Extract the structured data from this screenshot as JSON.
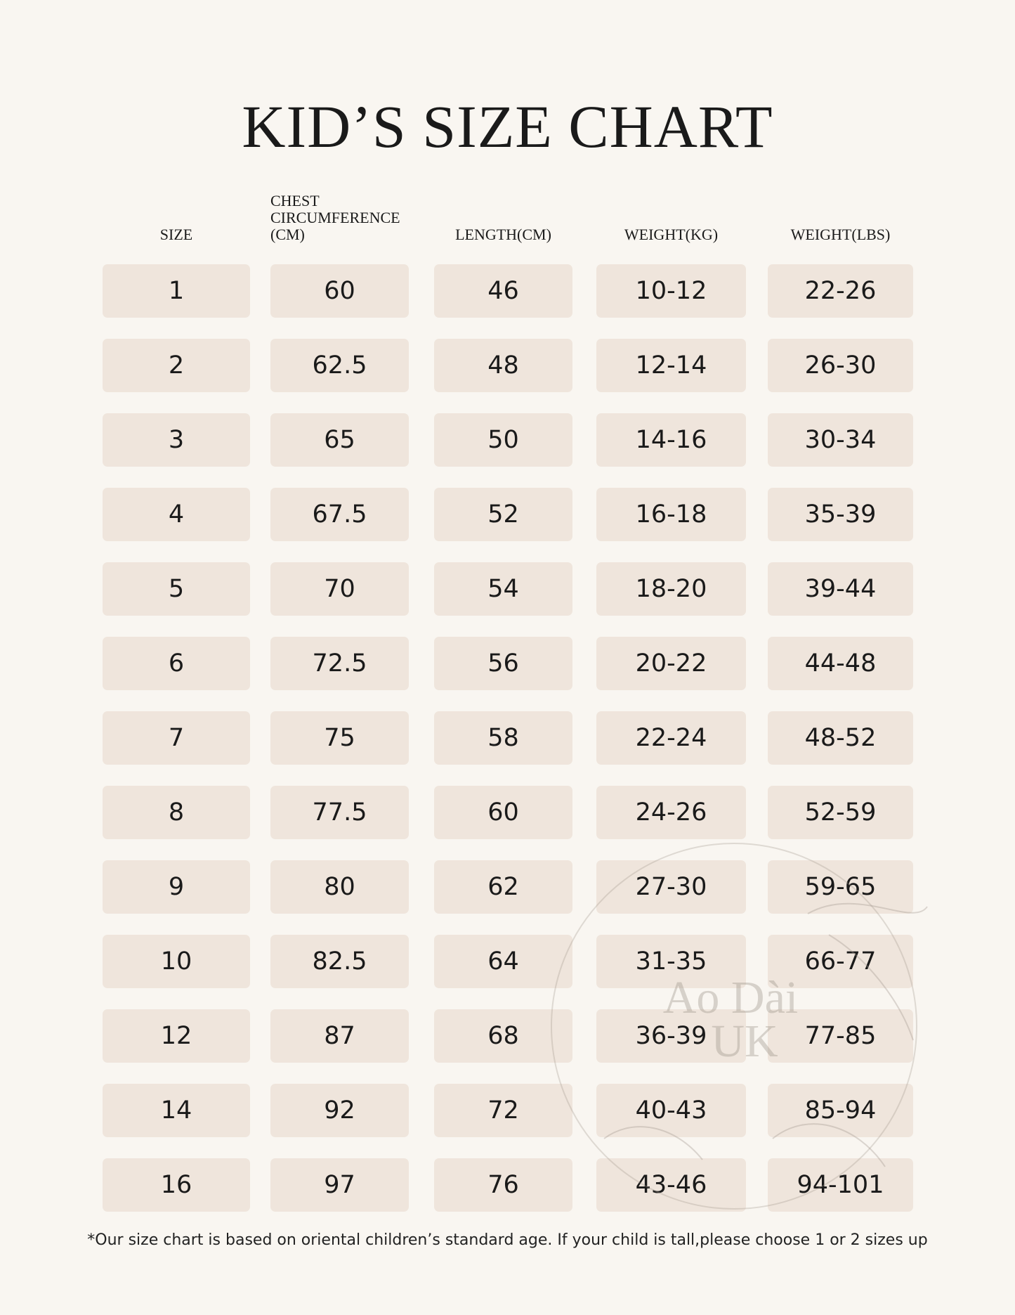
{
  "header": {
    "title": "KID’S SIZE CHART"
  },
  "table": {
    "columns": [
      "SIZE",
      "CHEST CIRCUMFERENCE (CM)",
      "LENGTH(CM)",
      "WEIGHT(KG)",
      "WEIGHT(LBS)"
    ],
    "rows": [
      [
        "1",
        "60",
        "46",
        "10-12",
        "22-26"
      ],
      [
        "2",
        "62.5",
        "48",
        "12-14",
        "26-30"
      ],
      [
        "3",
        "65",
        "50",
        "14-16",
        "30-34"
      ],
      [
        "4",
        "67.5",
        "52",
        "16-18",
        "35-39"
      ],
      [
        "5",
        "70",
        "54",
        "18-20",
        "39-44"
      ],
      [
        "6",
        "72.5",
        "56",
        "20-22",
        "44-48"
      ],
      [
        "7",
        "75",
        "58",
        "22-24",
        "48-52"
      ],
      [
        "8",
        "77.5",
        "60",
        "24-26",
        "52-59"
      ],
      [
        "9",
        "80",
        "62",
        "27-30",
        "59-65"
      ],
      [
        "10",
        "82.5",
        "64",
        "31-35",
        "66-77"
      ],
      [
        "12",
        "87",
        "68",
        "36-39",
        "77-85"
      ],
      [
        "14",
        "92",
        "72",
        "40-43",
        "85-94"
      ],
      [
        "16",
        "97",
        "76",
        "43-46",
        "94-101"
      ]
    ]
  },
  "footnote": "*Our size chart is based on oriental children’s standard age. If your child is tall,please choose 1 or 2 sizes up",
  "watermark": {
    "lines": [
      "Ao Dài",
      "UK"
    ]
  }
}
